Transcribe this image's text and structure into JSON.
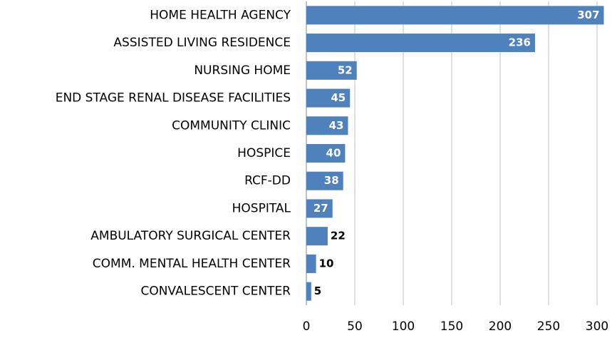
{
  "chart_data": {
    "type": "bar",
    "orientation": "horizontal",
    "categories": [
      "HOME HEALTH AGENCY",
      "ASSISTED LIVING RESIDENCE",
      "NURSING HOME",
      "END STAGE RENAL DISEASE FACILITIES",
      "COMMUNITY CLINIC",
      "HOSPICE",
      "RCF-DD",
      "HOSPITAL",
      "AMBULATORY SURGICAL CENTER",
      "COMM. MENTAL HEALTH CENTER",
      "CONVALESCENT CENTER"
    ],
    "values": [
      307,
      236,
      52,
      45,
      43,
      40,
      38,
      27,
      22,
      10,
      5
    ],
    "color": "#4f81bd",
    "xlim": [
      0,
      310
    ],
    "xticks": [
      0,
      50,
      100,
      150,
      200,
      250,
      300
    ],
    "grid": true
  }
}
